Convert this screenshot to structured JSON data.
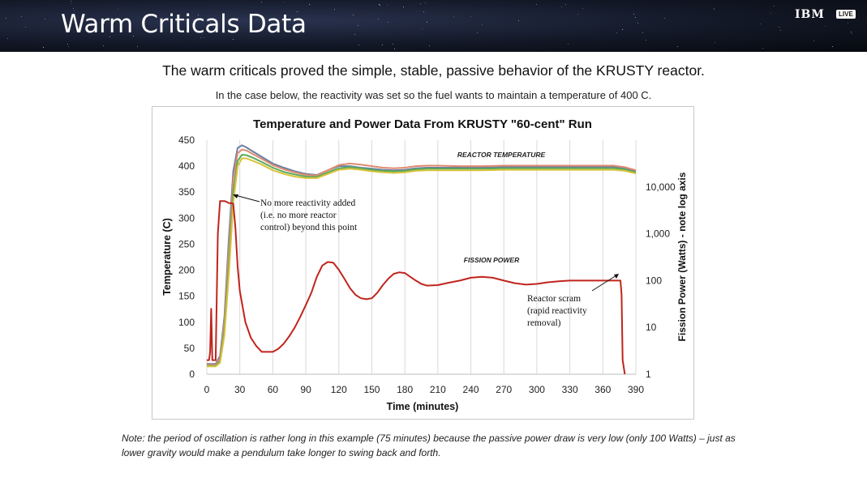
{
  "slide": {
    "title": "Warm Criticals Data",
    "brand": "IBM",
    "badge": "LIVE",
    "headline": "The warm criticals proved the simple, stable, passive behavior of the KRUSTY reactor.",
    "subline": "In the case below, the reactivity was set so the fuel wants to maintain a temperature of 400 C.",
    "note": "Note: the period of oscillation is rather long in this example (75 minutes) because the passive power draw is very low (only 100 Watts) – just as lower gravity would make a pendulum take longer to swing back and forth."
  },
  "chart_data": {
    "type": "line",
    "title": "Temperature and Power Data From KRUSTY \"60-cent\" Run",
    "xlabel": "Time (minutes)",
    "ylabel": "Temperature (C)",
    "y2label": "Fission Power (Watts) - note log axis",
    "xlim": [
      0,
      390
    ],
    "ylim": [
      0,
      450
    ],
    "y2lim": [
      1,
      100000
    ],
    "y2_scale": "log",
    "xticks": [
      "0",
      "30",
      "60",
      "90",
      "120",
      "150",
      "180",
      "210",
      "240",
      "270",
      "300",
      "330",
      "360",
      "390"
    ],
    "yticks": [
      "0",
      "50",
      "100",
      "150",
      "200",
      "250",
      "300",
      "350",
      "400",
      "450"
    ],
    "y2ticks": [
      {
        "value": 1,
        "label": "1"
      },
      {
        "value": 10,
        "label": "10"
      },
      {
        "value": 100,
        "label": "100"
      },
      {
        "value": 1000,
        "label": "1,000"
      },
      {
        "value": 10000,
        "label": "10,000"
      }
    ],
    "grid": "vertical",
    "temperature_series": [
      {
        "color": "#6b7fa3",
        "x": [
          0,
          8,
          12,
          16,
          20,
          24,
          28,
          32,
          36,
          42,
          50,
          60,
          70,
          80,
          90,
          100,
          110,
          120,
          130,
          140,
          150,
          160,
          170,
          180,
          190,
          200,
          210,
          230,
          250,
          270,
          290,
          310,
          330,
          350,
          370,
          380,
          390
        ],
        "y": [
          20,
          20,
          35,
          110,
          260,
          390,
          435,
          440,
          436,
          428,
          418,
          405,
          397,
          390,
          385,
          383,
          392,
          400,
          400,
          397,
          395,
          393,
          392,
          393,
          396,
          397,
          397,
          397,
          397,
          398,
          398,
          398,
          398,
          398,
          398,
          396,
          390
        ]
      },
      {
        "color": "#e08a70",
        "x": [
          0,
          8,
          12,
          16,
          20,
          24,
          28,
          32,
          36,
          42,
          50,
          60,
          70,
          80,
          90,
          100,
          110,
          120,
          130,
          140,
          150,
          160,
          170,
          180,
          190,
          200,
          210,
          230,
          250,
          270,
          290,
          310,
          330,
          350,
          370,
          380,
          390
        ],
        "y": [
          18,
          18,
          30,
          100,
          240,
          375,
          425,
          432,
          430,
          423,
          414,
          402,
          394,
          388,
          383,
          382,
          392,
          402,
          405,
          403,
          400,
          397,
          396,
          397,
          400,
          401,
          401,
          400,
          400,
          401,
          401,
          401,
          401,
          401,
          401,
          398,
          392
        ]
      },
      {
        "color": "#5aaa5a",
        "x": [
          0,
          8,
          12,
          16,
          20,
          24,
          28,
          32,
          36,
          42,
          50,
          60,
          70,
          80,
          90,
          100,
          110,
          120,
          130,
          140,
          150,
          160,
          170,
          180,
          190,
          200,
          210,
          230,
          250,
          270,
          290,
          310,
          330,
          350,
          370,
          380,
          390
        ],
        "y": [
          16,
          16,
          25,
          85,
          210,
          350,
          410,
          422,
          421,
          416,
          408,
          397,
          389,
          384,
          380,
          379,
          388,
          396,
          398,
          396,
          393,
          391,
          390,
          391,
          394,
          395,
          395,
          395,
          395,
          396,
          396,
          396,
          396,
          396,
          396,
          394,
          388
        ]
      },
      {
        "color": "#d8c23a",
        "x": [
          0,
          8,
          12,
          16,
          20,
          24,
          28,
          32,
          36,
          42,
          50,
          60,
          70,
          80,
          90,
          100,
          110,
          120,
          130,
          140,
          150,
          160,
          170,
          180,
          190,
          200,
          210,
          230,
          250,
          270,
          290,
          310,
          330,
          350,
          370,
          380,
          390
        ],
        "y": [
          15,
          15,
          22,
          75,
          190,
          330,
          400,
          415,
          415,
          410,
          403,
          392,
          385,
          380,
          377,
          377,
          385,
          393,
          395,
          393,
          390,
          388,
          387,
          388,
          391,
          392,
          392,
          392,
          392,
          393,
          393,
          393,
          393,
          393,
          393,
          391,
          386
        ]
      }
    ],
    "power_series": {
      "color": "#c0241c",
      "x": [
        0,
        2,
        3,
        4,
        5,
        6,
        8,
        10,
        12,
        14,
        16,
        18,
        20,
        22,
        24,
        26,
        28,
        30,
        35,
        40,
        45,
        50,
        55,
        60,
        65,
        70,
        75,
        80,
        85,
        90,
        95,
        100,
        105,
        110,
        115,
        120,
        125,
        130,
        135,
        140,
        145,
        150,
        155,
        160,
        165,
        170,
        175,
        180,
        185,
        190,
        195,
        200,
        210,
        220,
        230,
        240,
        250,
        260,
        270,
        280,
        290,
        300,
        310,
        320,
        330,
        340,
        350,
        360,
        365,
        370,
        375,
        376,
        377,
        378,
        380
      ],
      "y": [
        2,
        2,
        3,
        25,
        2,
        2,
        2,
        1000,
        5000,
        5000,
        5000,
        4800,
        4500,
        4500,
        4400,
        1300,
        200,
        60,
        13,
        6,
        4,
        3,
        3,
        3,
        3.5,
        4.5,
        6.5,
        10,
        17,
        30,
        55,
        120,
        210,
        250,
        240,
        170,
        110,
        70,
        50,
        42,
        40,
        42,
        55,
        80,
        110,
        140,
        150,
        145,
        120,
        100,
        85,
        78,
        80,
        90,
        100,
        115,
        120,
        115,
        100,
        88,
        82,
        85,
        92,
        97,
        100,
        100,
        100,
        100,
        100,
        100,
        100,
        100,
        50,
        2,
        1
      ]
    },
    "annotations": [
      {
        "text": "REACTOR TEMPERATURE"
      },
      {
        "text": "FISSION POWER"
      },
      {
        "lines": [
          "No more reactivity  added",
          "(i.e. no more reactor",
          "control)  beyond  this point"
        ]
      },
      {
        "lines": [
          "Reactor scram",
          "(rapid reactivity",
          "removal)"
        ]
      }
    ]
  }
}
